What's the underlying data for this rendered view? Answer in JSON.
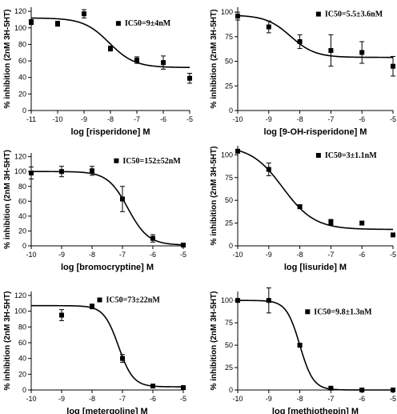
{
  "chart_data": [
    {
      "type": "scatter",
      "xlabel": "log [risperidone] M",
      "ylabel": "% inhibition (2nM 3H-5HT)",
      "xlim": [
        -11,
        -5
      ],
      "ylim": [
        0,
        125
      ],
      "xticks": [
        -11,
        -10,
        -9,
        -8,
        -7,
        -6,
        -5
      ],
      "yticks": [
        0,
        20,
        40,
        60,
        80,
        100,
        120
      ],
      "annotation": "IC50=9±4nM",
      "curve": {
        "top": 112,
        "bottom": 52,
        "log_ic50": -8.05,
        "hill": 0.9
      },
      "points": [
        {
          "x": -11,
          "y": 107,
          "err": 3
        },
        {
          "x": -10,
          "y": 105,
          "err": 3
        },
        {
          "x": -9,
          "y": 117,
          "err": 5
        },
        {
          "x": -8,
          "y": 75,
          "err": 3
        },
        {
          "x": -7,
          "y": 61,
          "err": 4
        },
        {
          "x": -6,
          "y": 58,
          "err": 8
        },
        {
          "x": -5,
          "y": 39,
          "err": 6
        }
      ]
    },
    {
      "type": "scatter",
      "xlabel": "log [9-OH-risperidone] M",
      "ylabel": "% inhibition (2nM 3H-5HT)",
      "xlim": [
        -10,
        -5
      ],
      "ylim": [
        0,
        105
      ],
      "xticks": [
        -10,
        -9,
        -8,
        -7,
        -6,
        -5
      ],
      "yticks": [
        0,
        25,
        50,
        75,
        100
      ],
      "annotation": "IC50=5.5±3.6nM",
      "curve": {
        "top": 97,
        "bottom": 54,
        "log_ic50": -8.3,
        "hill": 1.1
      },
      "points": [
        {
          "x": -10,
          "y": 96,
          "err": 4
        },
        {
          "x": -9,
          "y": 85,
          "err": 6
        },
        {
          "x": -8,
          "y": 70,
          "err": 7
        },
        {
          "x": -7,
          "y": 61,
          "err": 16
        },
        {
          "x": -6,
          "y": 59,
          "err": 11
        },
        {
          "x": -5,
          "y": 45,
          "err": 10
        }
      ]
    },
    {
      "type": "scatter",
      "xlabel": "log [bromocryptine] M",
      "ylabel": "% inhibition (2nM 3H-5HT)",
      "xlim": [
        -10,
        -5
      ],
      "ylim": [
        0,
        125
      ],
      "xticks": [
        -10,
        -9,
        -8,
        -7,
        -6,
        -5
      ],
      "yticks": [
        0,
        20,
        40,
        60,
        80,
        100,
        120
      ],
      "annotation": "IC50=152±52nM",
      "curve": {
        "top": 100,
        "bottom": 1,
        "log_ic50": -6.82,
        "hill": 1.3
      },
      "points": [
        {
          "x": -10,
          "y": 98,
          "err": 8
        },
        {
          "x": -9,
          "y": 100,
          "err": 7
        },
        {
          "x": -8,
          "y": 101,
          "err": 6
        },
        {
          "x": -7,
          "y": 63,
          "err": 17
        },
        {
          "x": -6,
          "y": 10,
          "err": 5
        },
        {
          "x": -5,
          "y": 1,
          "err": 2
        }
      ]
    },
    {
      "type": "scatter",
      "xlabel": "log [lisuride] M",
      "ylabel": "% inhibition (2nM 3H-5HT)",
      "xlim": [
        -10,
        -5
      ],
      "ylim": [
        0,
        110
      ],
      "xticks": [
        -10,
        -9,
        -8,
        -7,
        -6,
        -5
      ],
      "yticks": [
        0,
        25,
        50,
        75,
        100
      ],
      "annotation": "IC50=3±1.1nM",
      "curve": {
        "top": 110,
        "bottom": 18,
        "log_ic50": -8.55,
        "hill": 0.85
      },
      "points": [
        {
          "x": -10,
          "y": 104,
          "err": 2
        },
        {
          "x": -9,
          "y": 84,
          "err": 7
        },
        {
          "x": -8,
          "y": 43,
          "err": 2
        },
        {
          "x": -7,
          "y": 26,
          "err": 3
        },
        {
          "x": -6,
          "y": 25,
          "err": 2
        },
        {
          "x": -5,
          "y": 12,
          "err": 2
        }
      ]
    },
    {
      "type": "scatter",
      "xlabel": "log [metergoline] M",
      "ylabel": "% inhibition (2nM 3H-5HT)",
      "xlim": [
        -10,
        -5
      ],
      "ylim": [
        0,
        125
      ],
      "xticks": [
        -10,
        -9,
        -8,
        -7,
        -6,
        -5
      ],
      "yticks": [
        0,
        20,
        40,
        60,
        80,
        100,
        120
      ],
      "annotation": "IC50=73±22nM",
      "curve": {
        "top": 107,
        "bottom": 4,
        "log_ic50": -7.13,
        "hill": 1.8
      },
      "points": [
        {
          "x": -9,
          "y": 95,
          "err": 7
        },
        {
          "x": -8,
          "y": 106,
          "err": 3
        },
        {
          "x": -7,
          "y": 40,
          "err": 5
        },
        {
          "x": -6,
          "y": 5,
          "err": 2
        },
        {
          "x": -5,
          "y": 3,
          "err": 2
        }
      ]
    },
    {
      "type": "scatter",
      "xlabel": "log [methiothepin] M",
      "ylabel": "% inhibition (2nM 3H-5HT)",
      "xlim": [
        -10,
        -5
      ],
      "ylim": [
        0,
        110
      ],
      "xticks": [
        -10,
        -9,
        -8,
        -7,
        -6,
        -5
      ],
      "yticks": [
        0,
        25,
        50,
        75,
        100
      ],
      "annotation": "IC50=9.8±1.3nM",
      "curve": {
        "top": 100,
        "bottom": 0,
        "log_ic50": -8.0,
        "hill": 2.0
      },
      "points": [
        {
          "x": -10,
          "y": 100,
          "err": 2
        },
        {
          "x": -9,
          "y": 100,
          "err": 14
        },
        {
          "x": -8,
          "y": 50,
          "err": 2
        },
        {
          "x": -7,
          "y": 2,
          "err": 1
        },
        {
          "x": -6,
          "y": 0,
          "err": 1
        },
        {
          "x": -5,
          "y": 0,
          "err": 1
        }
      ]
    }
  ]
}
